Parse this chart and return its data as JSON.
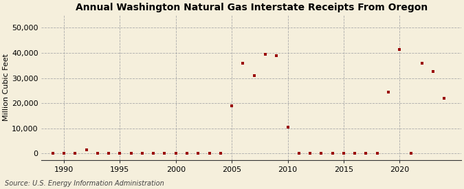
{
  "title": "Annual Washington Natural Gas Interstate Receipts From Oregon",
  "ylabel": "Million Cubic Feet",
  "source": "Source: U.S. Energy Information Administration",
  "background_color": "#f5efdc",
  "marker_color": "#990000",
  "years": [
    1989,
    1990,
    1991,
    1992,
    1993,
    1994,
    1995,
    1996,
    1997,
    1998,
    1999,
    2000,
    2001,
    2002,
    2003,
    2004,
    2005,
    2006,
    2007,
    2008,
    2009,
    2010,
    2011,
    2012,
    2013,
    2014,
    2015,
    2016,
    2017,
    2018,
    2019,
    2020,
    2021,
    2022,
    2023,
    2024
  ],
  "values": [
    0,
    10,
    10,
    1500,
    50,
    50,
    80,
    50,
    50,
    50,
    80,
    80,
    80,
    50,
    50,
    50,
    19000,
    36000,
    31000,
    39500,
    39000,
    10500,
    50,
    50,
    50,
    50,
    50,
    50,
    50,
    50,
    24500,
    41500,
    50,
    36000,
    32500,
    22000
  ],
  "xlim": [
    1988.0,
    2025.5
  ],
  "ylim": [
    -2500,
    55000
  ],
  "yticks": [
    0,
    10000,
    20000,
    30000,
    40000,
    50000
  ],
  "xticks": [
    1990,
    1995,
    2000,
    2005,
    2010,
    2015,
    2020
  ],
  "title_fontsize": 10,
  "label_fontsize": 8,
  "tick_fontsize": 8,
  "source_fontsize": 7,
  "marker_size": 8,
  "figsize": [
    6.75,
    2.75
  ],
  "dpi": 100
}
